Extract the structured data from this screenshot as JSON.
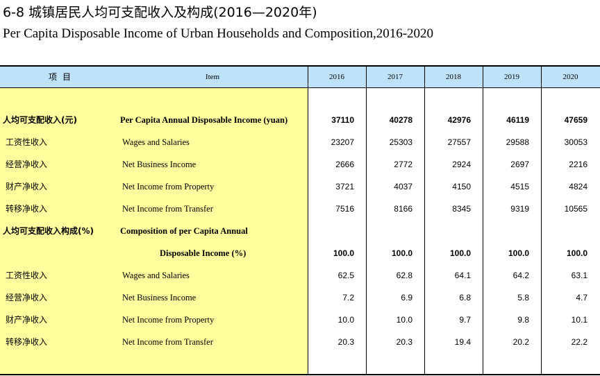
{
  "title": {
    "cn": "6-8   城镇居民人均可支配收入及构成(2016—2020年)",
    "en": "Per Capita Disposable Income of Urban Households and Composition,2016-2020"
  },
  "header": {
    "item_cn": "项目",
    "item_en": "Item",
    "years": [
      "2016",
      "2017",
      "2018",
      "2019",
      "2020"
    ]
  },
  "rows": [
    {
      "cn": "人均可支配收入(元)",
      "en": "Per Capita Annual Disposable Income (yuan)",
      "values": [
        "37110",
        "40278",
        "42976",
        "46119",
        "47659"
      ]
    },
    {
      "cn": "工资性收入",
      "en": "Wages and Salaries",
      "values": [
        "23207",
        "25303",
        "27557",
        "29588",
        "30053"
      ]
    },
    {
      "cn": "经营净收入",
      "en": "Net Business Income",
      "values": [
        "2666",
        "2772",
        "2924",
        "2697",
        "2216"
      ]
    },
    {
      "cn": "财产净收入",
      "en": "Net Income from Property",
      "values": [
        "3721",
        "4037",
        "4150",
        "4515",
        "4824"
      ]
    },
    {
      "cn": "转移净收入",
      "en": "Net Income from Transfer",
      "values": [
        "7516",
        "8166",
        "8345",
        "9319",
        "10565"
      ]
    },
    {
      "cn": "人均可支配收入构成(%)",
      "en": "Composition of per Capita Annual"
    },
    {
      "en": "Disposable Income (%)",
      "values": [
        "100.0",
        "100.0",
        "100.0",
        "100.0",
        "100.0"
      ]
    },
    {
      "cn": "工资性收入",
      "en": "Wages and Salaries",
      "values": [
        "62.5",
        "62.8",
        "64.1",
        "64.2",
        "63.1"
      ]
    },
    {
      "cn": "经营净收入",
      "en": "Net Business Income",
      "values": [
        "7.2",
        "6.9",
        "6.8",
        "5.8",
        "4.7"
      ]
    },
    {
      "cn": "财产净收入",
      "en": "Net Income from Property",
      "values": [
        "10.0",
        "10.0",
        "9.7",
        "9.8",
        "10.1"
      ]
    },
    {
      "cn": "转移净收入",
      "en": "Net Income from Transfer",
      "values": [
        "20.3",
        "20.3",
        "19.4",
        "20.2",
        "22.2"
      ]
    }
  ],
  "colors": {
    "header_bg": "#bfe2fb",
    "item_column_bg": "#ffff9e"
  }
}
